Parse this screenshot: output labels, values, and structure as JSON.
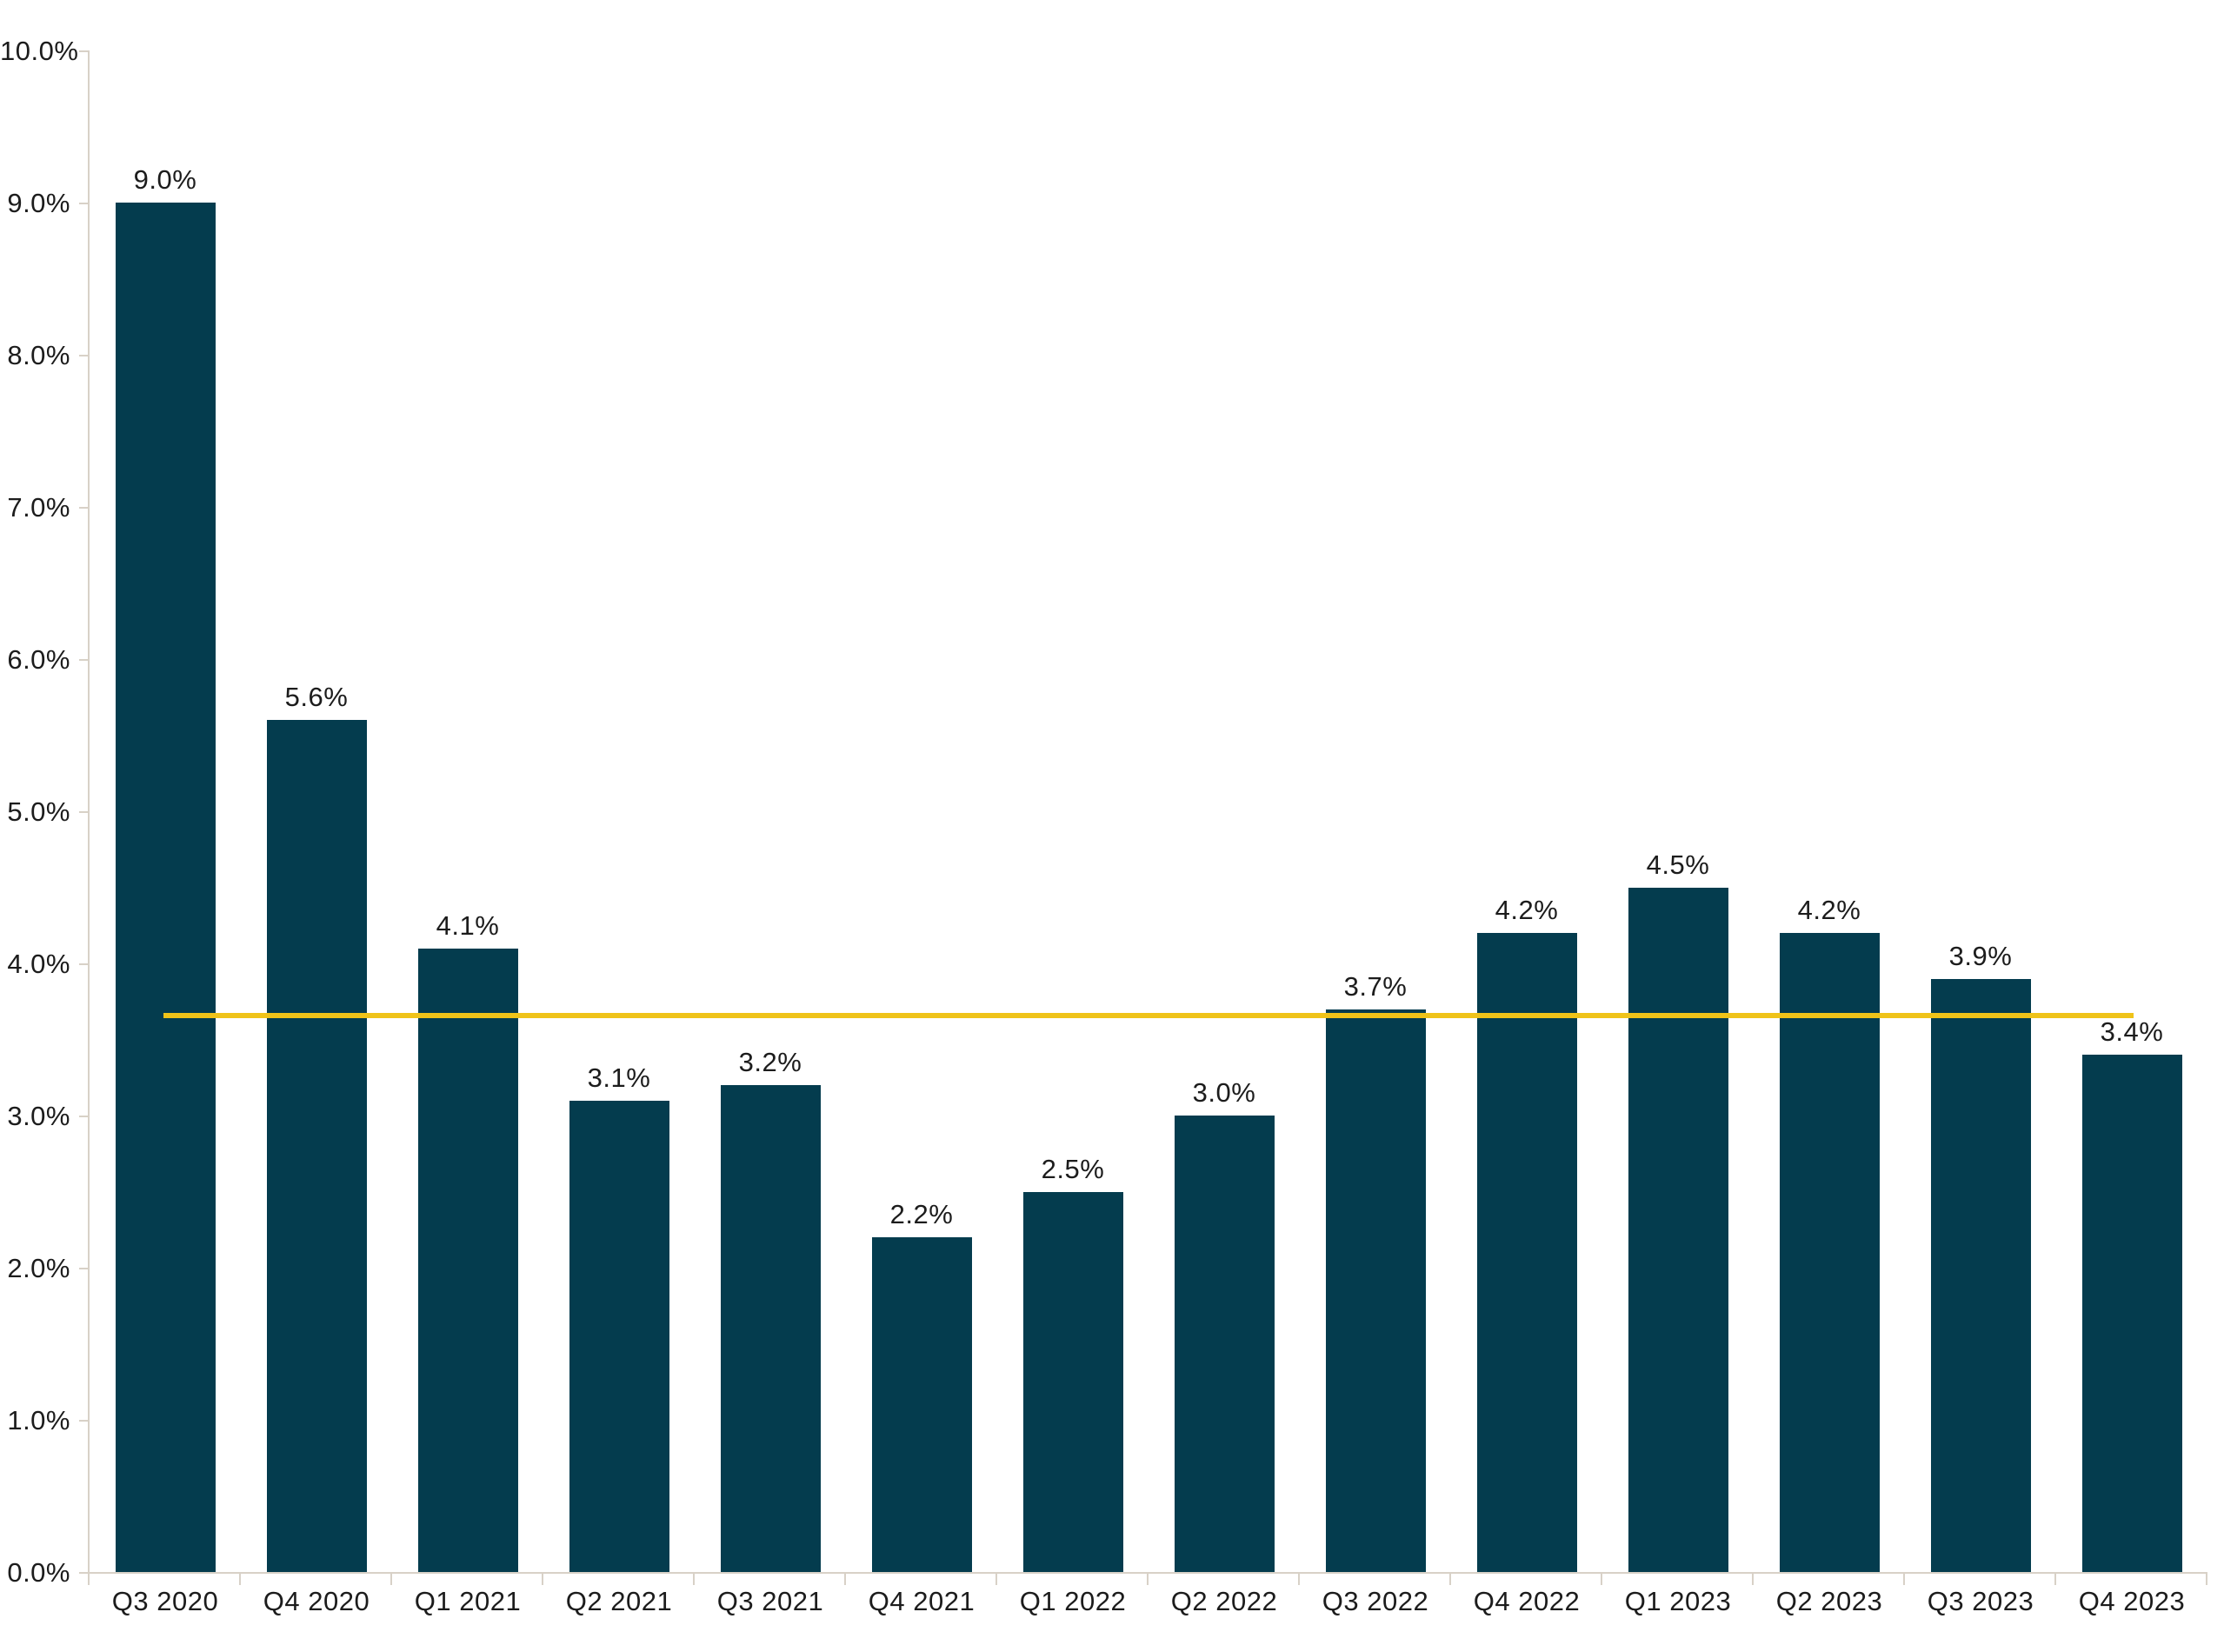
{
  "chart_data": {
    "type": "bar",
    "title": "",
    "categories": [
      "Q3 2020",
      "Q4 2020",
      "Q1 2021",
      "Q2 2021",
      "Q3 2021",
      "Q4 2021",
      "Q1 2022",
      "Q2 2022",
      "Q3 2022",
      "Q4 2022",
      "Q1 2023",
      "Q2 2023",
      "Q3 2023",
      "Q4 2023"
    ],
    "values": [
      9.0,
      5.6,
      4.1,
      3.1,
      3.2,
      2.2,
      2.5,
      3.0,
      3.7,
      4.2,
      4.5,
      4.2,
      3.9,
      3.4
    ],
    "bar_labels": [
      "9.0%",
      "5.6%",
      "4.1%",
      "3.1%",
      "3.2%",
      "2.2%",
      "2.5%",
      "3.0%",
      "3.7%",
      "4.2%",
      "4.5%",
      "4.2%",
      "3.9%",
      "3.4%"
    ],
    "xlabel": "",
    "ylabel": "",
    "ylim": [
      0,
      10
    ],
    "y_tick_step": 1,
    "y_ticks": [
      "0.0%",
      "1.0%",
      "2.0%",
      "3.0%",
      "4.0%",
      "5.0%",
      "6.0%",
      "7.0%",
      "8.0%",
      "9.0%",
      "10.0%"
    ],
    "grid": false,
    "legend": false,
    "reference_line": {
      "value": 3.66,
      "extends": "first-bar-center-to-last-bar-center"
    },
    "colors": {
      "bar": "#043C4E",
      "reference_line": "#EFC319",
      "axis": "#D8D1C7",
      "text": "#1C1C1C",
      "background": "#FFFFFF"
    }
  }
}
